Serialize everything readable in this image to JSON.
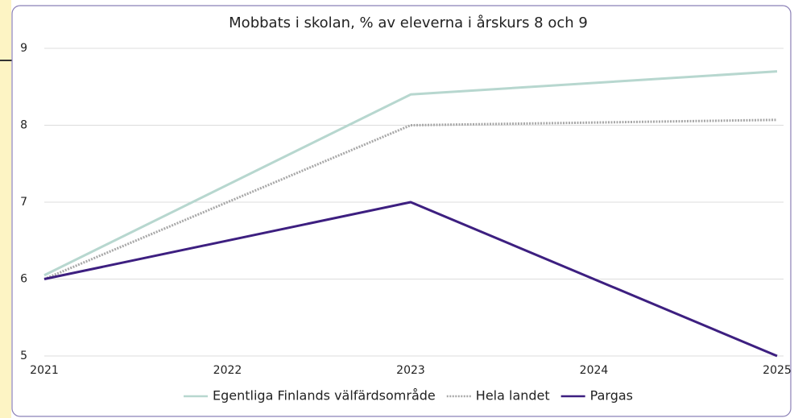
{
  "chart_data": {
    "type": "line",
    "title": "Mobbats i skolan, % av eleverna i årskurs 8 och 9",
    "x": [
      2021,
      2023,
      2025
    ],
    "xlim": [
      2021,
      2025
    ],
    "xticks": [
      2021,
      2022,
      2023,
      2024,
      2025
    ],
    "ylim": [
      5,
      9
    ],
    "yticks": [
      5,
      6,
      7,
      8,
      9
    ],
    "grid": true,
    "legend": "bottom",
    "series": [
      {
        "name": "Egentliga Finlands välfärdsområde",
        "color": "#b7d7cf",
        "style": "solid",
        "values": [
          6.05,
          8.4,
          8.7
        ]
      },
      {
        "name": "Hela landet",
        "color": "#a8a8a8",
        "style": "dotted",
        "values": [
          6.0,
          8.0,
          8.07
        ]
      },
      {
        "name": "Pargas",
        "color": "#3d1f80",
        "style": "solid",
        "values": [
          6.0,
          7.0,
          5.0
        ]
      }
    ]
  }
}
